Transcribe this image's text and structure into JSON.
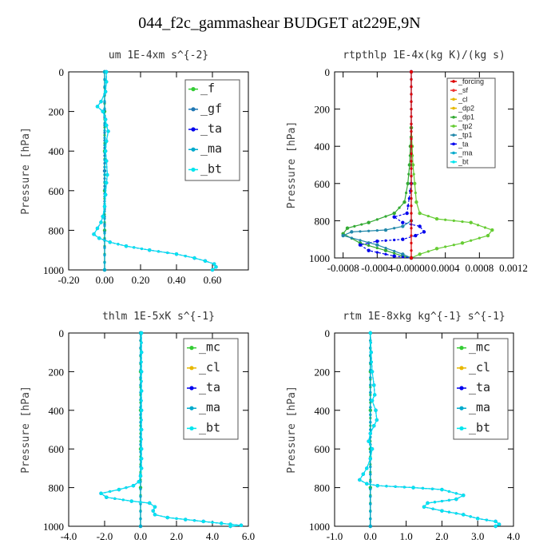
{
  "figure_title": "044_f2c_gammashear  BUDGET at229E,9N",
  "colors": {
    "f": "#33cc33",
    "gf": "#1f77b4",
    "ta": "#0000ee",
    "ma": "#00aacc",
    "bt": "#00e5ee",
    "forcing": "#dd0000",
    "sf": "#ee3333",
    "cl": "#e6b800",
    "dp2": "#e6b800",
    "dp1": "#33aa33",
    "tp2": "#66cc33",
    "tp1": "#2288aa",
    "mc": "#33cc33",
    "axis": "#000000"
  },
  "chart_data": [
    {
      "type": "line",
      "title": "um   1E-4xm s^{-2}",
      "ylabel": "Pressure [hPa]",
      "xlim": [
        -0.2,
        0.8
      ],
      "ylim": [
        1000,
        0
      ],
      "xticks": [
        -0.2,
        0.0,
        0.2,
        0.4,
        0.6
      ],
      "xticklabels": [
        "-0.20",
        "0.00",
        "0.20",
        "0.40",
        "0.60"
      ],
      "yticks": [
        0,
        200,
        400,
        600,
        800,
        1000
      ],
      "yticklabels": [
        "0",
        "200",
        "400",
        "600",
        "800",
        "1000"
      ],
      "legend_style": "large",
      "legend": [
        "_f",
        "_gf",
        "_ta",
        "_ma",
        "_bt"
      ],
      "series": [
        {
          "name": "_f",
          "color_key": "f",
          "x": [
            0,
            0,
            0,
            0,
            0,
            0
          ],
          "y": [
            0,
            200,
            400,
            600,
            800,
            1000
          ]
        },
        {
          "name": "_gf",
          "color_key": "gf",
          "x": [
            0,
            0,
            0
          ],
          "y": [
            0,
            500,
            1000
          ]
        },
        {
          "name": "_ta",
          "color_key": "ta",
          "x": [
            0.01,
            0.01,
            0.005,
            -0.02,
            -0.04,
            -0.01,
            0.005,
            0.01,
            0.02,
            0.01,
            0.005,
            0.01,
            0.015,
            0.01,
            0.005,
            0.0,
            -0.01,
            -0.02,
            -0.04,
            -0.06,
            -0.03,
            0.03,
            0.12,
            0.25,
            0.4,
            0.5,
            0.56,
            0.61,
            0.62,
            0.6
          ],
          "y": [
            0,
            50,
            100,
            150,
            175,
            200,
            240,
            270,
            300,
            350,
            400,
            450,
            520,
            560,
            620,
            680,
            730,
            760,
            790,
            820,
            840,
            860,
            880,
            900,
            920,
            940,
            955,
            970,
            985,
            1000
          ]
        },
        {
          "name": "_ma",
          "color_key": "ma",
          "x": [
            0,
            0
          ],
          "y": [
            0,
            1000
          ]
        },
        {
          "name": "_bt",
          "color_key": "bt",
          "x": [
            0.01,
            0.01,
            0.005,
            -0.02,
            -0.04,
            -0.01,
            0.005,
            0.01,
            0.02,
            0.01,
            0.005,
            0.01,
            0.015,
            0.01,
            0.005,
            0.0,
            -0.01,
            -0.02,
            -0.04,
            -0.06,
            -0.03,
            0.03,
            0.12,
            0.25,
            0.4,
            0.5,
            0.56,
            0.61,
            0.62,
            0.6
          ],
          "y": [
            0,
            50,
            100,
            150,
            175,
            200,
            240,
            270,
            300,
            350,
            400,
            450,
            520,
            560,
            620,
            680,
            730,
            760,
            790,
            820,
            840,
            860,
            880,
            900,
            920,
            940,
            955,
            970,
            985,
            1000
          ]
        }
      ]
    },
    {
      "type": "line",
      "title": "rtpthlp   1E-4x(kg K)/(kg s)",
      "ylabel": "Pressure [hPa]",
      "xlim": [
        -0.0009,
        0.0012
      ],
      "ylim": [
        1000,
        0
      ],
      "xticks": [
        -0.0008,
        -0.0004,
        0.0,
        0.0004,
        0.0008,
        0.0012
      ],
      "xticklabels": [
        "-0.0008",
        "-0.0004",
        "-0.00000",
        "0.0004",
        "0.0008",
        "0.0012"
      ],
      "yticks": [
        0,
        200,
        400,
        600,
        800,
        1000
      ],
      "yticklabels": [
        "0",
        "200",
        "400",
        "600",
        "800",
        "1000"
      ],
      "legend_style": "small",
      "legend": [
        "_forcing",
        "_sf",
        "_cl",
        "_dp2",
        "_dp1",
        "_tp2",
        "_tp1",
        "_ta",
        "_ma",
        "_bt"
      ],
      "series": [
        {
          "name": "_tp2",
          "color_key": "tp2",
          "x": [
            0.0,
            1e-05,
            2e-05,
            4e-05,
            6e-05,
            0.0001,
            0.0003,
            0.0007,
            0.00095,
            0.0009,
            0.0006,
            0.0003,
            0.0001,
            0.0
          ],
          "y": [
            300,
            400,
            500,
            600,
            700,
            760,
            790,
            810,
            850,
            880,
            920,
            950,
            980,
            1000
          ]
        },
        {
          "name": "_dp1",
          "color_key": "dp1",
          "x": [
            0.0,
            -1e-05,
            -2e-05,
            -4e-05,
            -8e-05,
            -0.0002,
            -0.0005,
            -0.00075,
            -0.0008,
            -0.0006,
            -0.0003,
            -0.0001,
            0.0
          ],
          "y": [
            300,
            400,
            500,
            600,
            700,
            760,
            810,
            840,
            870,
            920,
            960,
            990,
            1000
          ]
        },
        {
          "name": "_ta",
          "color_key": "ta",
          "x": [
            0.0,
            0.0,
            -5e-05,
            -0.0002,
            -0.0001,
            0.0001,
            0.00015,
            5e-05,
            -0.0001,
            -0.0004,
            -0.0006,
            -0.0005,
            -0.0002,
            0.0
          ],
          "y": [
            0,
            600,
            760,
            780,
            810,
            830,
            860,
            880,
            900,
            910,
            930,
            960,
            990,
            1000
          ]
        },
        {
          "name": "_tp1",
          "color_key": "tp1",
          "x": [
            0.0,
            0.0,
            -0.0001,
            -0.0003,
            -0.0007,
            -0.0008,
            -0.0004,
            -0.0001,
            0.0
          ],
          "y": [
            0,
            800,
            830,
            850,
            860,
            880,
            930,
            980,
            1000
          ]
        },
        {
          "name": "_forcing",
          "color_key": "forcing",
          "x": [
            0.0,
            0.0
          ],
          "y": [
            0,
            1000
          ]
        }
      ]
    },
    {
      "type": "line",
      "title": "thlm   1E-5xK s^{-1}",
      "ylabel": "Pressure [hPa]",
      "xlim": [
        -4.0,
        6.0
      ],
      "ylim": [
        1000,
        0
      ],
      "xticks": [
        -4,
        -2,
        0,
        2,
        4,
        6
      ],
      "xticklabels": [
        "-4.0",
        "-2.0",
        "0.0",
        "2.0",
        "4.0",
        "6.0"
      ],
      "yticks": [
        0,
        200,
        400,
        600,
        800,
        1000
      ],
      "yticklabels": [
        "0",
        "200",
        "400",
        "600",
        "800",
        "1000"
      ],
      "legend_style": "large",
      "legend": [
        "_mc",
        "_cl",
        "_ta",
        "_ma",
        "_bt"
      ],
      "series": [
        {
          "name": "_mc",
          "color_key": "mc",
          "x": [
            0,
            0,
            0,
            0,
            0,
            0
          ],
          "y": [
            0,
            200,
            400,
            600,
            800,
            1000
          ]
        },
        {
          "name": "_cl",
          "color_key": "gf",
          "x": [
            0,
            0
          ],
          "y": [
            0,
            1000
          ]
        },
        {
          "name": "_ta",
          "color_key": "ta",
          "x": [
            0.05,
            0.05,
            0.05,
            0.05,
            0.05,
            0.05,
            0.05,
            0.05,
            0.05,
            0.0,
            -0.1,
            -0.4,
            -1.2,
            -2.2,
            -1.9,
            -0.5,
            0.5,
            0.8,
            0.7,
            0.8,
            1.5,
            2.5,
            3.5,
            4.5,
            5.0,
            5.6,
            5.0
          ],
          "y": [
            0,
            100,
            200,
            300,
            400,
            500,
            600,
            650,
            700,
            740,
            770,
            790,
            810,
            830,
            850,
            870,
            880,
            900,
            920,
            940,
            955,
            965,
            975,
            985,
            990,
            995,
            1000
          ]
        },
        {
          "name": "_ma",
          "color_key": "ma",
          "x": [
            0,
            0
          ],
          "y": [
            0,
            1000
          ]
        },
        {
          "name": "_bt",
          "color_key": "bt",
          "x": [
            0.05,
            0.05,
            0.05,
            0.05,
            0.05,
            0.05,
            0.05,
            0.05,
            0.05,
            0.0,
            -0.1,
            -0.4,
            -1.2,
            -2.2,
            -1.9,
            -0.5,
            0.5,
            0.8,
            0.7,
            0.8,
            1.5,
            2.5,
            3.5,
            4.5,
            5.0,
            5.6,
            5.0
          ],
          "y": [
            0,
            100,
            200,
            300,
            400,
            500,
            600,
            650,
            700,
            740,
            770,
            790,
            810,
            830,
            850,
            870,
            880,
            900,
            920,
            940,
            955,
            965,
            975,
            985,
            990,
            995,
            1000
          ]
        }
      ]
    },
    {
      "type": "line",
      "title": "rtm   1E-8xkg kg^{-1} s^{-1}",
      "ylabel": "Pressure [hPa]",
      "xlim": [
        -1.0,
        4.0
      ],
      "ylim": [
        1000,
        0
      ],
      "xticks": [
        -1,
        0,
        1,
        2,
        3,
        4
      ],
      "xticklabels": [
        "-1.0",
        "0.0",
        "1.0",
        "2.0",
        "3.0",
        "4.0"
      ],
      "yticks": [
        0,
        200,
        400,
        600,
        800,
        1000
      ],
      "yticklabels": [
        "0",
        "200",
        "400",
        "600",
        "800",
        "1000"
      ],
      "legend_style": "large",
      "legend": [
        "_mc",
        "_cl",
        "_ta",
        "_ma",
        "_bt"
      ],
      "series": [
        {
          "name": "_mc",
          "color_key": "mc",
          "x": [
            0,
            0,
            0,
            0,
            0,
            0
          ],
          "y": [
            0,
            200,
            400,
            600,
            800,
            1000
          ]
        },
        {
          "name": "_cl",
          "color_key": "gf",
          "x": [
            0,
            0
          ],
          "y": [
            0,
            1000
          ]
        },
        {
          "name": "_ta",
          "color_key": "ta",
          "x": [
            0.0,
            0.02,
            0.05,
            0.1,
            0.12,
            0.05,
            0.15,
            0.18,
            0.1,
            0.0,
            -0.05,
            0.05,
            0.0,
            -0.1,
            -0.2,
            -0.3,
            -0.1,
            0.2,
            1.2,
            2.0,
            2.6,
            2.4,
            1.6,
            1.5,
            2.0,
            2.6,
            3.0,
            3.5,
            3.6,
            3.5
          ],
          "y": [
            0,
            100,
            200,
            270,
            320,
            350,
            400,
            450,
            480,
            520,
            560,
            600,
            650,
            700,
            730,
            760,
            780,
            790,
            800,
            810,
            840,
            860,
            880,
            900,
            920,
            940,
            960,
            975,
            990,
            1000
          ]
        },
        {
          "name": "_ma",
          "color_key": "ma",
          "x": [
            0,
            0
          ],
          "y": [
            0,
            1000
          ]
        },
        {
          "name": "_bt",
          "color_key": "bt",
          "x": [
            0.0,
            0.02,
            0.05,
            0.1,
            0.12,
            0.05,
            0.15,
            0.18,
            0.1,
            0.0,
            -0.05,
            0.05,
            0.0,
            -0.1,
            -0.2,
            -0.3,
            -0.1,
            0.2,
            1.2,
            2.0,
            2.6,
            2.4,
            1.6,
            1.5,
            2.0,
            2.6,
            3.0,
            3.5,
            3.6,
            3.5
          ],
          "y": [
            0,
            100,
            200,
            270,
            320,
            350,
            400,
            450,
            480,
            520,
            560,
            600,
            650,
            700,
            730,
            760,
            780,
            790,
            800,
            810,
            840,
            860,
            880,
            900,
            920,
            940,
            960,
            975,
            990,
            1000
          ]
        }
      ]
    }
  ]
}
